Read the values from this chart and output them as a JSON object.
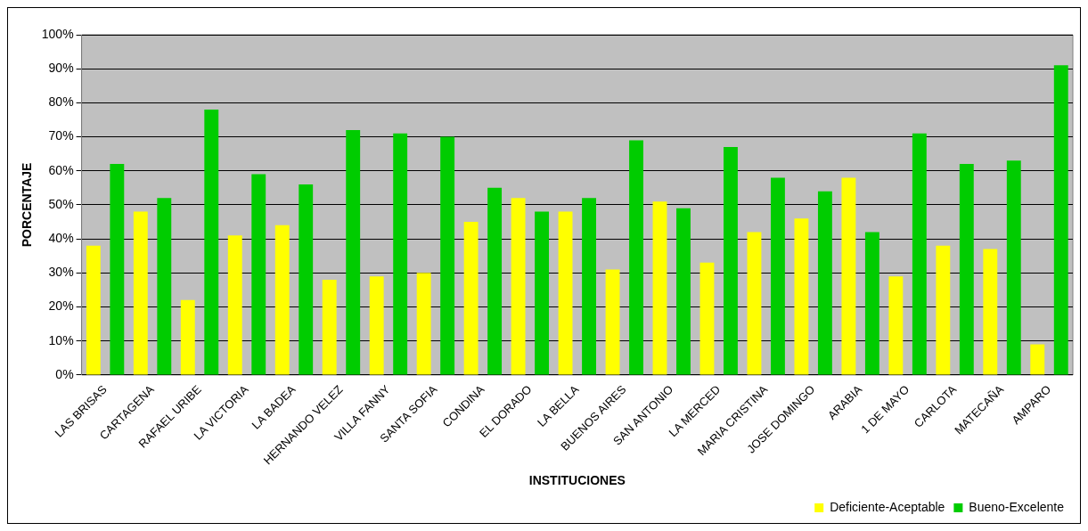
{
  "chart_data": {
    "type": "bar",
    "xlabel": "INSTITUCIONES",
    "ylabel": "PORCENTAJE",
    "categories": [
      "LAS BRISAS",
      "CARTAGENA",
      "RAFAEL URIBE",
      "LA VICTORIA",
      "LA BADEA",
      "HERNANDO VELEZ",
      "VILLA FANNY",
      "SANTA SOFIA",
      "CONDINA",
      "EL DORADO",
      "LA BELLA",
      "BUENOS AIRES",
      "SAN ANTONIO",
      "LA MERCED",
      "MARIA CRISTINA",
      "JOSE DOMINGO",
      "ARABIA",
      "1 DE MAYO",
      "CARLOTA",
      "MATECAÑA",
      "AMPARO"
    ],
    "series": [
      {
        "name": "Deficiente-Aceptable",
        "color": "#ffff00",
        "values": [
          38,
          48,
          22,
          41,
          44,
          28,
          29,
          30,
          45,
          52,
          48,
          31,
          51,
          33,
          42,
          46,
          58,
          29,
          38,
          37,
          9
        ]
      },
      {
        "name": "Bueno-Excelente",
        "color": "#00cc00",
        "values": [
          62,
          52,
          78,
          59,
          56,
          72,
          71,
          70,
          55,
          48,
          52,
          69,
          49,
          67,
          58,
          54,
          42,
          71,
          62,
          63,
          91
        ]
      }
    ],
    "ylim": [
      0,
      100
    ],
    "yticks": [
      {
        "value": 0,
        "label": "0%"
      },
      {
        "value": 10,
        "label": "10%"
      },
      {
        "value": 20,
        "label": "20%"
      },
      {
        "value": 30,
        "label": "30%"
      },
      {
        "value": 40,
        "label": "40%"
      },
      {
        "value": 50,
        "label": "50%"
      },
      {
        "value": 60,
        "label": "60%"
      },
      {
        "value": 70,
        "label": "70%"
      },
      {
        "value": 80,
        "label": "80%"
      },
      {
        "value": 90,
        "label": "90%"
      },
      {
        "value": 100,
        "label": "100%"
      }
    ],
    "grid": "y",
    "legend": "bottom right"
  }
}
